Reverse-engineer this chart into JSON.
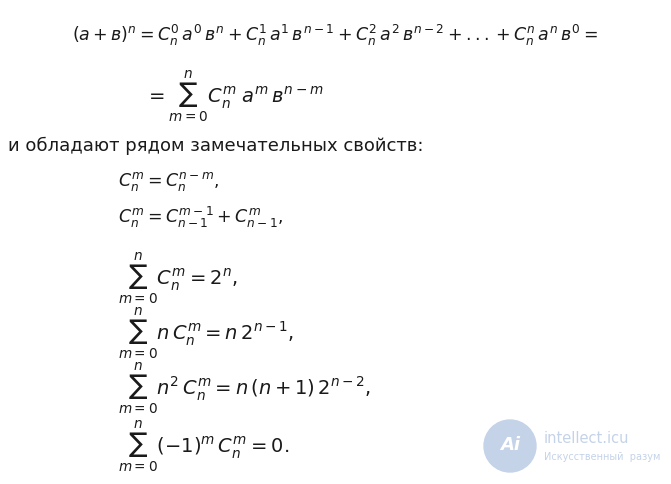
{
  "bg_color": "#ffffff",
  "text_color": "#1a1a1a",
  "watermark_color": "#c5d3e8",
  "watermark_text1": "intellect.icu",
  "watermark_text2": "Искусственный  разум",
  "prose": "и обладают рядом замечательных свойств:",
  "fs_formula": 12.5,
  "fs_text": 13.0,
  "fs_wm1": 10.5,
  "fs_wm2": 7.0,
  "fs_ai": 13
}
